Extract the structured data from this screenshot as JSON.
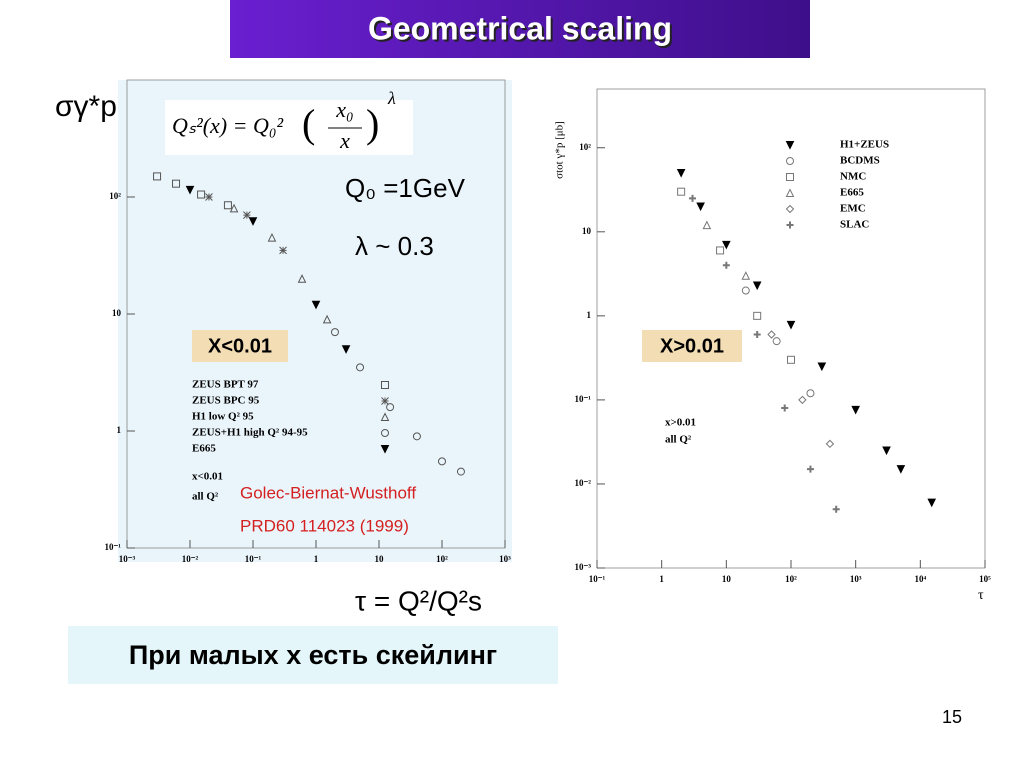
{
  "title": "Geometrical scaling",
  "page_number": "15",
  "bottom_text": "При малых x есть скейлинг",
  "chart_data": [
    {
      "type": "scatter",
      "y_label": "σγ*p",
      "x_label": "τ = Q²/Q²s",
      "formula": {
        "lhs": "Qₛ²(x) = Q₀²",
        "num": "x₀",
        "den": "x",
        "exp": "λ"
      },
      "q0": "Q₀ =1GeV",
      "lambda": "λ ~ 0.3",
      "region": "X<0.01",
      "cut": "x<0.01",
      "all": "all Q²",
      "ref1": "Golec-Biernat-Wusthoff",
      "ref2": "PRD60 114023 (1999)",
      "log_x": true,
      "log_y": true,
      "xlim": [
        0.001,
        1000
      ],
      "ylim": [
        0.1,
        1000
      ],
      "xticks": [
        {
          "value": 0.001,
          "label": "10⁻³"
        },
        {
          "value": 0.01,
          "label": "10⁻²"
        },
        {
          "value": 0.1,
          "label": "10⁻¹"
        },
        1,
        10,
        {
          "value": 100,
          "label": "10²"
        },
        {
          "value": 1000,
          "label": "10³"
        }
      ],
      "yticks": [
        {
          "value": 0.1,
          "label": "10⁻¹"
        },
        1,
        10,
        {
          "value": 100,
          "label": "10²"
        }
      ],
      "series": [
        {
          "name": "ZEUS BPT 97",
          "marker": "square",
          "color": "#555555",
          "x": [
            0.003,
            0.006,
            0.015,
            0.04
          ],
          "values": [
            150,
            130,
            105,
            85
          ]
        },
        {
          "name": "ZEUS BPC 95",
          "marker": "star",
          "color": "#555555",
          "x": [
            0.02,
            0.08,
            0.3
          ],
          "values": [
            100,
            70,
            35
          ]
        },
        {
          "name": "H1 low Q² 95",
          "marker": "triangle",
          "color": "#555555",
          "x": [
            0.05,
            0.2,
            0.6,
            1.5
          ],
          "values": [
            80,
            45,
            20,
            9
          ]
        },
        {
          "name": "ZEUS+H1 high Q² 94-95",
          "marker": "circle",
          "color": "#555555",
          "x": [
            2,
            5,
            15,
            40,
            100,
            200
          ],
          "values": [
            7,
            3.5,
            1.6,
            0.9,
            0.55,
            0.45
          ]
        },
        {
          "name": "E665",
          "marker": "triangle-down",
          "color": "#000000",
          "x": [
            0.01,
            0.1,
            1,
            3
          ],
          "values": [
            115,
            62,
            12,
            5
          ]
        }
      ]
    },
    {
      "type": "scatter",
      "y_label": "σtot γ*p [μb]",
      "x_label": "τ",
      "region": "X>0.01",
      "cut": "x>0.01",
      "all": "all Q²",
      "log_x": true,
      "log_y": true,
      "xlim": [
        0.1,
        100000
      ],
      "ylim": [
        0.001,
        500
      ],
      "xticks": [
        {
          "value": 0.1,
          "label": "10⁻¹"
        },
        1,
        10,
        {
          "value": 100,
          "label": "10²"
        },
        {
          "value": 1000,
          "label": "10³"
        },
        {
          "value": 10000,
          "label": "10⁴"
        },
        {
          "value": 100000,
          "label": "10⁵"
        }
      ],
      "yticks": [
        {
          "value": 0.001,
          "label": "10⁻³"
        },
        {
          "value": 0.01,
          "label": "10⁻²"
        },
        {
          "value": 0.1,
          "label": "10⁻¹"
        },
        1,
        10,
        {
          "value": 100,
          "label": "10²"
        }
      ],
      "series": [
        {
          "name": "H1+ZEUS",
          "marker": "triangle-down",
          "color": "#000000",
          "x": [
            2,
            4,
            10,
            30,
            100,
            300,
            1000,
            3000,
            5000,
            15000
          ],
          "values": [
            50,
            20,
            7,
            2.3,
            0.78,
            0.25,
            0.076,
            0.025,
            0.015,
            0.006
          ]
        },
        {
          "name": "BCDMS",
          "marker": "circle",
          "color": "#777777",
          "x": [
            20,
            60,
            200
          ],
          "values": [
            2,
            0.5,
            0.12
          ]
        },
        {
          "name": "NMC",
          "marker": "square",
          "color": "#777777",
          "x": [
            2,
            8,
            30,
            100
          ],
          "values": [
            30,
            6,
            1,
            0.3
          ]
        },
        {
          "name": "E665",
          "marker": "triangle",
          "color": "#777777",
          "x": [
            5,
            20
          ],
          "values": [
            12,
            3
          ]
        },
        {
          "name": "EMC",
          "marker": "diamond",
          "color": "#777777",
          "x": [
            50,
            150,
            400
          ],
          "values": [
            0.6,
            0.1,
            0.03
          ]
        },
        {
          "name": "SLAC",
          "marker": "cross",
          "color": "#777777",
          "x": [
            3,
            10,
            30,
            80,
            200,
            500
          ],
          "values": [
            25,
            4,
            0.6,
            0.08,
            0.015,
            0.005
          ]
        }
      ]
    }
  ]
}
